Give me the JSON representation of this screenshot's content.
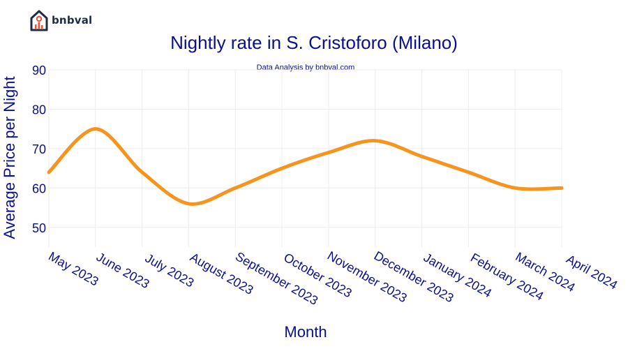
{
  "brand": {
    "name": "bnbval"
  },
  "chart_data": {
    "type": "line",
    "title": "Nightly rate in S. Cristoforo (Milano)",
    "subtitle": "Data Analysis by bnbval.com",
    "xlabel": "Month",
    "ylabel": "Average Price per Night",
    "categories": [
      "May 2023",
      "June 2023",
      "July 2023",
      "August 2023",
      "September 2023",
      "October 2023",
      "November 2023",
      "December 2023",
      "January 2024",
      "February 2024",
      "March 2024",
      "April 2024"
    ],
    "series": [
      {
        "name": "Nightly rate",
        "values": [
          64,
          75,
          64,
          56,
          60,
          65,
          69,
          72,
          68,
          64,
          60,
          60
        ]
      }
    ],
    "yticks": [
      50,
      60,
      70,
      80,
      90
    ],
    "ylim": [
      45,
      90
    ],
    "grid": true,
    "color": "#f7941d"
  }
}
